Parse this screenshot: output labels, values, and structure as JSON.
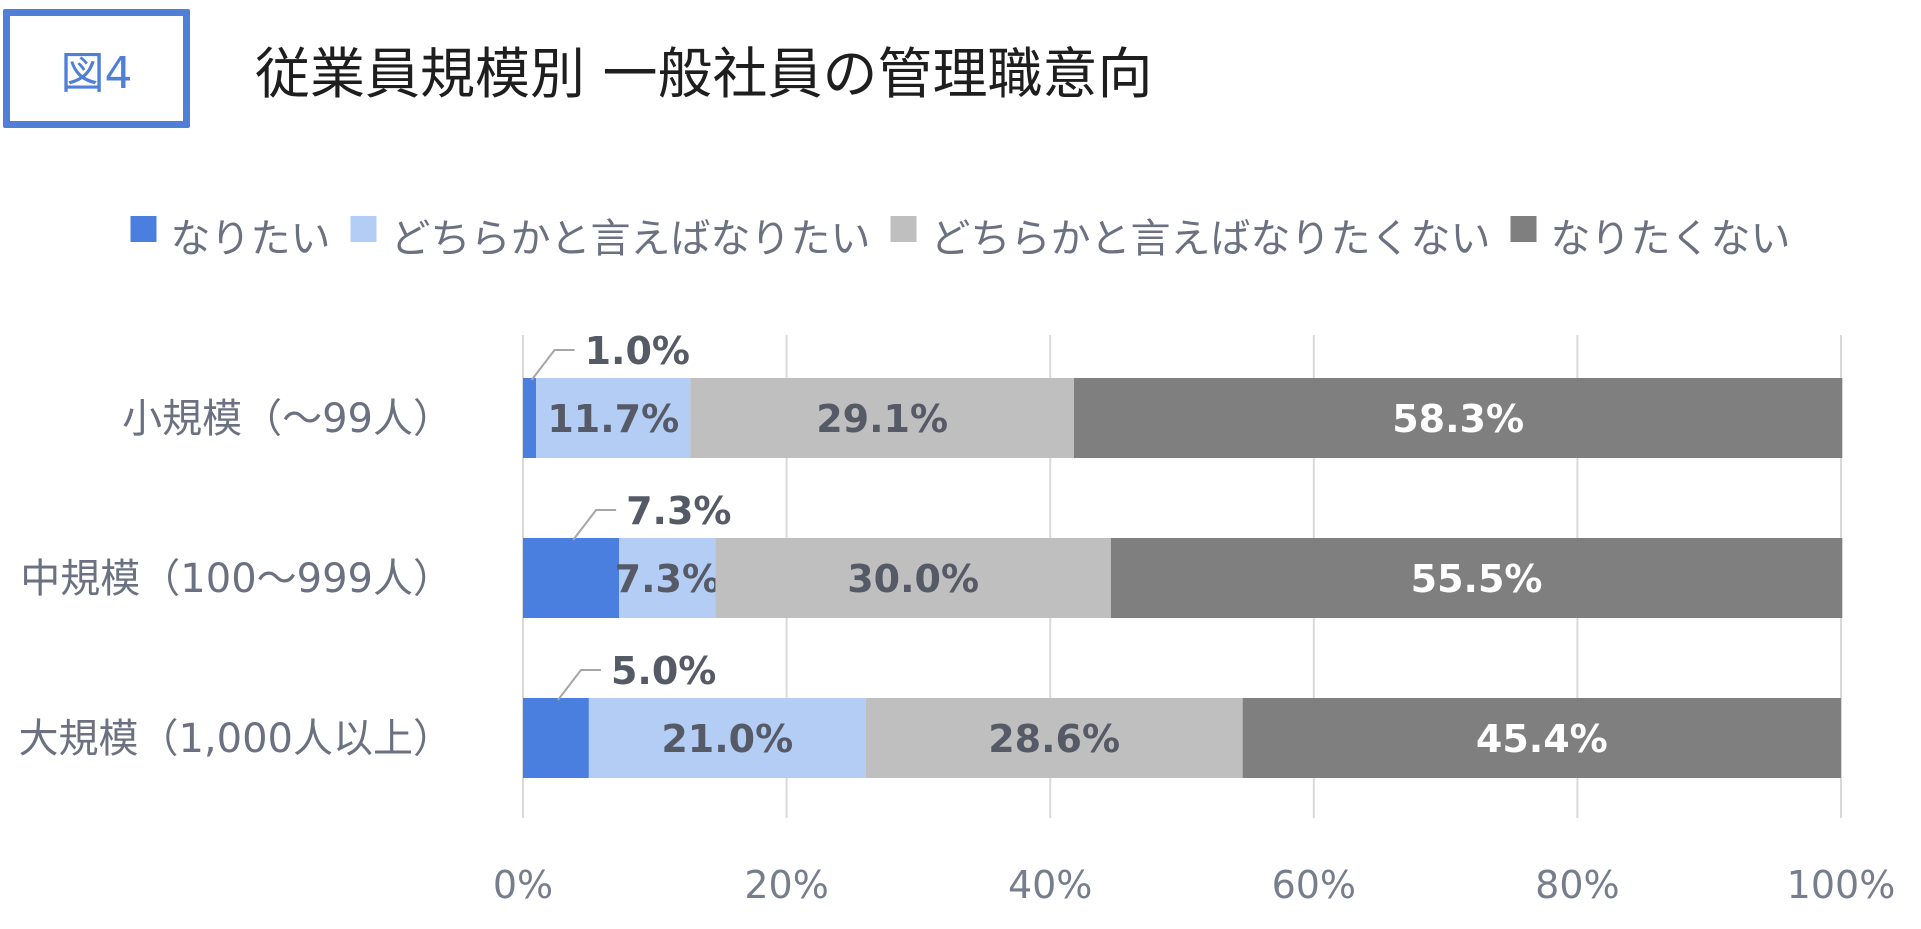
{
  "figure_label": "図4",
  "chart_data": {
    "type": "bar",
    "orientation": "horizontal",
    "stacked": true,
    "percent": true,
    "title": "従業員規模別 一般社員の管理職意向",
    "categories": [
      "小規模（〜99人）",
      "中規模（100〜999人）",
      "大規模（1,000人以上）"
    ],
    "series": [
      {
        "name": "なりたい",
        "values": [
          1.0,
          7.3,
          5.0
        ],
        "labels": [
          "1.0%",
          "7.3%",
          "5.0%"
        ],
        "color": "#4a7fe0",
        "label_color": "#555a66"
      },
      {
        "name": "どちらかと言えばなりたい",
        "values": [
          11.7,
          7.3,
          21.0
        ],
        "labels": [
          "11.7%",
          "7.3%",
          "21.0%"
        ],
        "color": "#b4cdf4",
        "label_color": "#555a66"
      },
      {
        "name": "どちらかと言えばなりたくない",
        "values": [
          29.1,
          30.0,
          28.6
        ],
        "labels": [
          "29.1%",
          "30.0%",
          "28.6%"
        ],
        "color": "#bfbfbf",
        "label_color": "#555a66"
      },
      {
        "name": "なりたくない",
        "values": [
          58.3,
          55.5,
          45.4
        ],
        "labels": [
          "58.3%",
          "55.5%",
          "45.4%"
        ],
        "color": "#7f7f7f",
        "label_color": "#ffffff"
      }
    ],
    "xlim": [
      0,
      100
    ],
    "xticks": [
      "0%",
      "20%",
      "40%",
      "60%",
      "80%",
      "100%"
    ],
    "grid": true,
    "legend": "top"
  }
}
